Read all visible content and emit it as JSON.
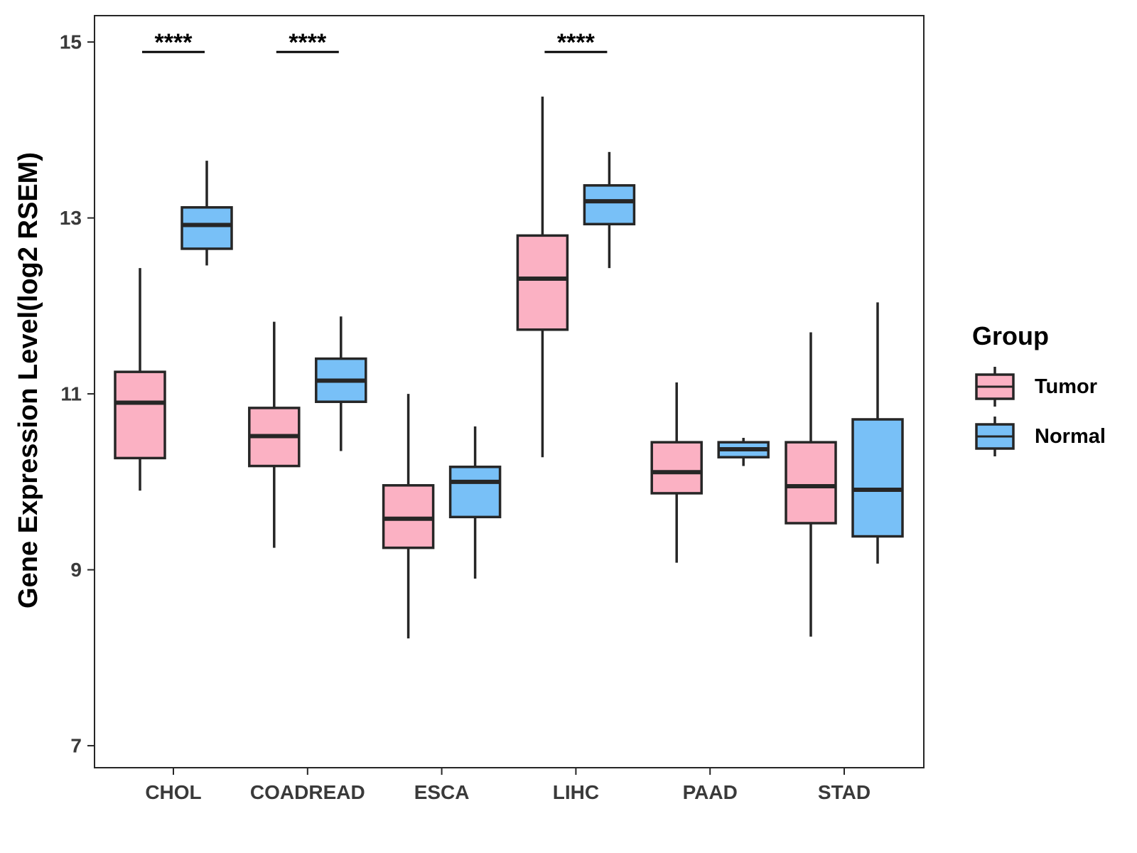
{
  "chart_data": {
    "type": "boxplot",
    "title": "",
    "xlabel": "",
    "ylabel": "Gene Expression Level(log2 RSEM)",
    "ylim": [
      6.75,
      15.3
    ],
    "yticks": [
      7,
      9,
      11,
      13,
      15
    ],
    "categories": [
      "CHOL",
      "COADREAD",
      "ESCA",
      "LIHC",
      "PAAD",
      "STAD"
    ],
    "legend": {
      "title": "Group",
      "position": "right",
      "entries": [
        {
          "name": "Tumor",
          "color": "#FBB1C3"
        },
        {
          "name": "Normal",
          "color": "#78C0F7"
        }
      ]
    },
    "series": [
      {
        "name": "Tumor",
        "color": "#FBB1C3",
        "boxes": [
          {
            "min": 9.9,
            "q1": 10.27,
            "median": 10.9,
            "q3": 11.25,
            "max": 12.43
          },
          {
            "min": 9.25,
            "q1": 10.18,
            "median": 10.52,
            "q3": 10.84,
            "max": 11.82
          },
          {
            "min": 8.22,
            "q1": 9.25,
            "median": 9.58,
            "q3": 9.96,
            "max": 11.0
          },
          {
            "min": 10.28,
            "q1": 11.73,
            "median": 12.31,
            "q3": 12.8,
            "max": 14.38
          },
          {
            "min": 9.08,
            "q1": 9.87,
            "median": 10.11,
            "q3": 10.45,
            "max": 11.13
          },
          {
            "min": 8.24,
            "q1": 9.53,
            "median": 9.95,
            "q3": 10.45,
            "max": 11.7
          }
        ]
      },
      {
        "name": "Normal",
        "color": "#78C0F7",
        "boxes": [
          {
            "min": 12.46,
            "q1": 12.65,
            "median": 12.92,
            "q3": 13.12,
            "max": 13.65
          },
          {
            "min": 10.35,
            "q1": 10.91,
            "median": 11.15,
            "q3": 11.4,
            "max": 11.88
          },
          {
            "min": 8.9,
            "q1": 9.6,
            "median": 10.0,
            "q3": 10.17,
            "max": 10.63
          },
          {
            "min": 12.43,
            "q1": 12.93,
            "median": 13.19,
            "q3": 13.37,
            "max": 13.75
          },
          {
            "min": 10.18,
            "q1": 10.28,
            "median": 10.37,
            "q3": 10.45,
            "max": 10.5
          },
          {
            "min": 9.07,
            "q1": 9.38,
            "median": 9.91,
            "q3": 10.71,
            "max": 12.04
          }
        ]
      }
    ],
    "significance": [
      {
        "category": "CHOL",
        "label": "****",
        "y": 15.0
      },
      {
        "category": "COADREAD",
        "label": "****",
        "y": 15.0
      },
      {
        "category": "LIHC",
        "label": "****",
        "y": 15.0
      }
    ]
  }
}
